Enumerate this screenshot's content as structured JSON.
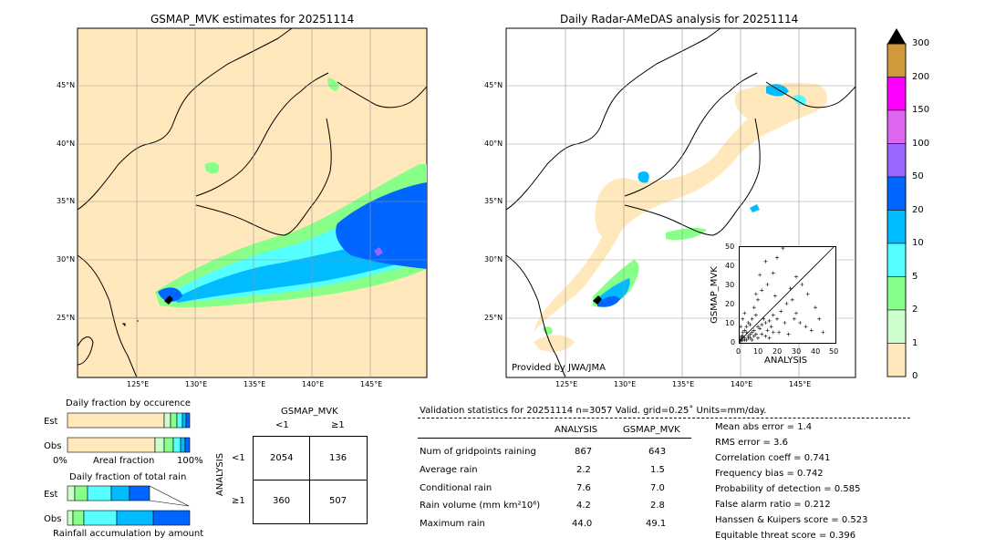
{
  "left_map": {
    "title": "GSMAP_MVK estimates for 20251114",
    "lat_labels": [
      "45°N",
      "40°N",
      "35°N",
      "30°N",
      "25°N"
    ],
    "lon_labels": [
      "125°E",
      "130°E",
      "135°E",
      "140°E",
      "145°E"
    ]
  },
  "right_map": {
    "title": "Daily Radar-AMeDAS analysis for 20251114",
    "lat_labels": [
      "45°N",
      "40°N",
      "35°N",
      "30°N",
      "25°N"
    ],
    "lon_labels": [
      "125°E",
      "130°E",
      "135°E",
      "140°E",
      "145°E"
    ],
    "credit": "Provided by JWA/JMA"
  },
  "colorbar": {
    "labels": [
      "300",
      "200",
      "150",
      "100",
      "50",
      "20",
      "10",
      "5",
      "2",
      "1",
      "0"
    ],
    "colors": [
      "#d09a3a",
      "#ff00ff",
      "#dd66ee",
      "#9966ff",
      "#0066ff",
      "#00bbff",
      "#55ffff",
      "#88ff88",
      "#ccffcc",
      "#ffe8bb"
    ]
  },
  "inset": {
    "xlabel": "ANALYSIS",
    "ylabel": "GSMAP_MVK",
    "ticks": [
      "0",
      "10",
      "20",
      "30",
      "40",
      "50"
    ]
  },
  "fraction_occurrence": {
    "title": "Daily fraction by occurence",
    "row_est": "Est",
    "row_obs": "Obs",
    "axis_left": "0%",
    "axis_mid": "Areal fraction",
    "axis_right": "100%"
  },
  "fraction_total": {
    "title": "Daily fraction of total rain",
    "row_est": "Est",
    "row_obs": "Obs",
    "footer": "Rainfall accumulation by amount"
  },
  "contingency": {
    "header": "GSMAP_MVK",
    "col_lt": "<1",
    "col_ge": "≥1",
    "side_label": "ANALYSIS",
    "row_lt": "<1",
    "row_ge": "≥1",
    "c11": "2054",
    "c12": "136",
    "c21": "360",
    "c22": "507"
  },
  "validation": {
    "header": "Validation statistics for 20251114  n=3057 Valid. grid=0.25˚ Units=mm/day.",
    "col_analysis": "ANALYSIS",
    "col_gsmap": "GSMAP_MVK",
    "rows": [
      {
        "label": "Num of gridpoints raining",
        "a": "867",
        "g": "643"
      },
      {
        "label": "Average rain",
        "a": "2.2",
        "g": "1.5"
      },
      {
        "label": "Conditional rain",
        "a": "7.6",
        "g": "7.0"
      },
      {
        "label": "Rain volume (mm km²10⁶)",
        "a": "4.2",
        "g": "2.8"
      },
      {
        "label": "Maximum rain",
        "a": "44.0",
        "g": "49.1"
      }
    ],
    "scores": [
      "Mean abs error =    1.4",
      "RMS error =    3.6",
      "Correlation coeff =  0.741",
      "Frequency bias =  0.742",
      "Probability of detection =  0.585",
      "False alarm ratio =  0.212",
      "Hanssen & Kuipers score =  0.523",
      "Equitable threat score =  0.396"
    ]
  },
  "chart_data": {
    "type": "scatter",
    "title": "",
    "xlabel": "ANALYSIS",
    "ylabel": "GSMAP_MVK",
    "xlim": [
      0,
      50
    ],
    "ylim": [
      0,
      50
    ],
    "points": [
      [
        1,
        0.5
      ],
      [
        2,
        1
      ],
      [
        3,
        2
      ],
      [
        4,
        1
      ],
      [
        5,
        3
      ],
      [
        6,
        4
      ],
      [
        2,
        3
      ],
      [
        1,
        2
      ],
      [
        3,
        1
      ],
      [
        4,
        5
      ],
      [
        5,
        2
      ],
      [
        7,
        5
      ],
      [
        8,
        6
      ],
      [
        9,
        4
      ],
      [
        10,
        8
      ],
      [
        6,
        9
      ],
      [
        3,
        6
      ],
      [
        2,
        5
      ],
      [
        11,
        7
      ],
      [
        12,
        9
      ],
      [
        14,
        10
      ],
      [
        15,
        6
      ],
      [
        13,
        12
      ],
      [
        16,
        11
      ],
      [
        18,
        14
      ],
      [
        20,
        12
      ],
      [
        22,
        16
      ],
      [
        24,
        10
      ],
      [
        9,
        14
      ],
      [
        7,
        12
      ],
      [
        5,
        10
      ],
      [
        4,
        8
      ],
      [
        8,
        18
      ],
      [
        10,
        22
      ],
      [
        12,
        27
      ],
      [
        15,
        30
      ],
      [
        9,
        25
      ],
      [
        11,
        35
      ],
      [
        14,
        42
      ],
      [
        20,
        44
      ],
      [
        23,
        49
      ],
      [
        18,
        36
      ],
      [
        25,
        20
      ],
      [
        28,
        22
      ],
      [
        30,
        15
      ],
      [
        32,
        10
      ],
      [
        35,
        8
      ],
      [
        38,
        6
      ],
      [
        40,
        18
      ],
      [
        42,
        12
      ],
      [
        44,
        5
      ],
      [
        27,
        28
      ],
      [
        30,
        34
      ],
      [
        33,
        30
      ],
      [
        36,
        25
      ],
      [
        19,
        24
      ],
      [
        17,
        8
      ],
      [
        21,
        5
      ],
      [
        26,
        4
      ],
      [
        29,
        12
      ],
      [
        1,
        8
      ],
      [
        2,
        12
      ],
      [
        3,
        15
      ],
      [
        1,
        1
      ],
      [
        2,
        2
      ],
      [
        0.5,
        0.5
      ],
      [
        1.5,
        3
      ],
      [
        6,
        2
      ],
      [
        7,
        1
      ],
      [
        8,
        3
      ],
      [
        10,
        2
      ],
      [
        12,
        4
      ],
      [
        14,
        3
      ],
      [
        16,
        2
      ],
      [
        18,
        5
      ]
    ]
  }
}
